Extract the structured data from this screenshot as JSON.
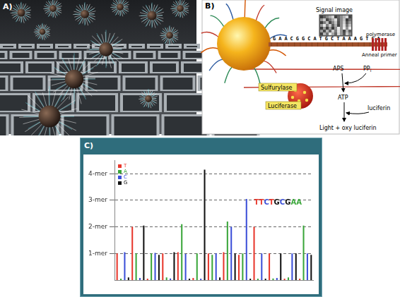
{
  "panels": {
    "a": {
      "label": "A)"
    },
    "b": {
      "label": "B)",
      "sequence": "GAACGGCATGCTAAAGTCA",
      "signal_image": "Signal image",
      "polymerase": "polymerase",
      "primer": "Anneal primer",
      "aps": "APS",
      "ppi": {
        "text": "PP",
        "subscript": "i"
      },
      "atp": "ATP",
      "luciferin": "luciferin",
      "sulfurylase": "Sulfurylase",
      "luciferase": "Luciferase",
      "product": "Light + oxy luciferin"
    },
    "c": {
      "label": "C)"
    }
  },
  "chart_data": {
    "type": "bar",
    "categories": [
      null,
      null,
      null,
      null,
      null,
      null,
      null,
      null,
      null,
      null,
      null,
      null,
      null,
      null,
      null,
      null,
      null,
      null,
      null,
      null,
      null,
      null,
      null,
      null,
      null,
      null,
      null,
      null,
      null,
      null,
      null,
      null,
      null,
      null,
      null,
      null,
      null,
      null,
      null,
      null,
      null,
      null,
      null,
      null,
      null,
      null,
      null,
      null,
      null,
      null,
      null,
      null
    ],
    "series": [
      {
        "name": "T",
        "color": "#e8372c",
        "values": [
          1,
          null,
          null,
          null,
          2,
          null,
          null,
          null,
          0.05,
          null,
          null,
          null,
          1,
          null,
          null,
          null,
          1.05,
          null,
          null,
          null,
          0.08,
          null,
          null,
          null,
          1,
          null,
          null,
          null,
          1.05,
          null,
          null,
          null,
          0.95,
          null,
          null,
          null,
          2,
          null,
          null,
          null,
          1,
          null,
          null,
          null,
          0.05,
          null,
          null,
          null,
          0.05,
          null,
          null,
          null
        ]
      },
      {
        "name": "A",
        "color": "#3aa63a",
        "values": [
          null,
          0.05,
          null,
          null,
          null,
          1,
          null,
          null,
          null,
          1,
          null,
          null,
          null,
          0.1,
          null,
          null,
          null,
          2.1,
          null,
          null,
          null,
          1,
          null,
          null,
          null,
          0.95,
          null,
          null,
          null,
          2.2,
          null,
          null,
          null,
          1,
          null,
          null,
          null,
          0.05,
          null,
          null,
          null,
          0.06,
          null,
          null,
          null,
          0.1,
          null,
          null,
          null,
          2.05,
          null,
          null
        ]
      },
      {
        "name": "C",
        "color": "#3b4fd8",
        "values": [
          null,
          null,
          1.05,
          null,
          null,
          null,
          0.08,
          null,
          null,
          null,
          1.02,
          null,
          null,
          null,
          0.06,
          null,
          null,
          null,
          0.98,
          null,
          null,
          null,
          0.05,
          null,
          null,
          null,
          1,
          null,
          null,
          null,
          2,
          null,
          null,
          null,
          3.05,
          null,
          null,
          null,
          1,
          null,
          null,
          null,
          0.08,
          null,
          null,
          null,
          1,
          null,
          null,
          null,
          1,
          null
        ]
      },
      {
        "name": "G",
        "color": "#111111",
        "values": [
          null,
          null,
          null,
          0.1,
          null,
          null,
          null,
          2.05,
          null,
          null,
          null,
          0.95,
          null,
          null,
          null,
          1.05,
          null,
          null,
          null,
          0.05,
          null,
          null,
          null,
          4.15,
          null,
          null,
          null,
          0.1,
          null,
          null,
          null,
          1,
          null,
          null,
          null,
          0.05,
          null,
          null,
          null,
          0.05,
          null,
          null,
          null,
          1,
          null,
          null,
          null,
          1,
          null,
          null,
          null,
          0.95
        ]
      }
    ],
    "ylim": [
      0,
      4.5
    ],
    "yticks": [
      {
        "value": 1,
        "label": "1-mer"
      },
      {
        "value": 2,
        "label": "2-mer"
      },
      {
        "value": 3,
        "label": "3-mer"
      },
      {
        "value": 4,
        "label": "4-mer"
      }
    ],
    "grid": true,
    "legend": "upper left",
    "tick_labels": "y",
    "annotations": [
      "TTCTGCGAA"
    ]
  }
}
